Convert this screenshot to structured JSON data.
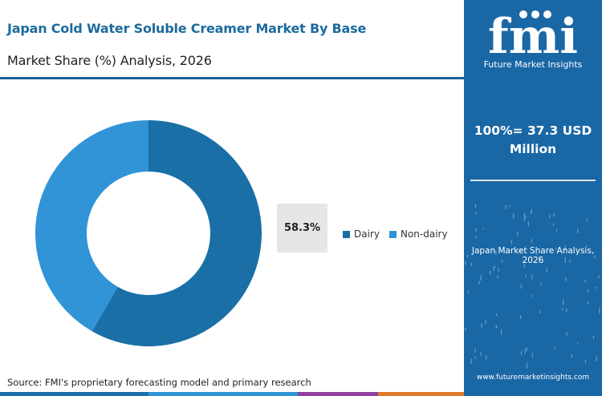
{
  "header": {
    "title": "Japan Cold Water Soluble Creamer Market By Base",
    "subtitle": "Market Share (%) Analysis, 2026"
  },
  "chart_data": {
    "type": "pie",
    "donut": true,
    "categories": [
      "Dairy",
      "Non-dairy"
    ],
    "values": [
      58.3,
      41.7
    ],
    "colors": [
      "#1a6fa6",
      "#3094d6"
    ],
    "data_labels": [
      "58.3%"
    ],
    "legend_placement": "right",
    "grid": false
  },
  "legend": {
    "items": [
      {
        "label": "Dairy",
        "color": "#1a6fa6"
      },
      {
        "label": "Non-dairy",
        "color": "#3094d6"
      }
    ]
  },
  "footer": {
    "source": "Source: FMI's proprietary forecasting model and primary research",
    "bar_colors": [
      "#1a6fa6",
      "#3094d6",
      "#8e3fa0",
      "#e07b2a"
    ]
  },
  "sidebar": {
    "logo_wordmark": "fmi",
    "logo_tagline": "Future Market Insights",
    "total": "100%= 37.3 USD Million",
    "caption": "Japan Market Share Analysis, 2026",
    "url": "www.futuremarketinsights.com",
    "background": "#1a67a5"
  }
}
